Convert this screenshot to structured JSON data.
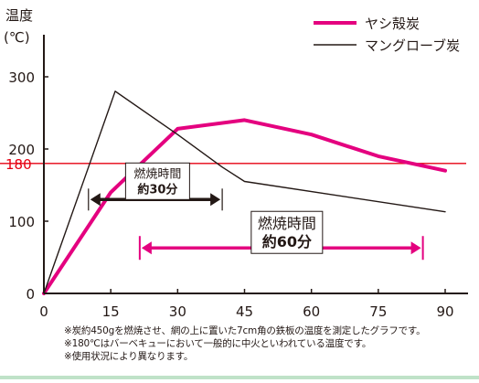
{
  "chart_data": {
    "type": "line",
    "ylabel_line1": "温度",
    "ylabel_line2": "(℃)",
    "xlim": [
      0,
      90
    ],
    "ylim": [
      0,
      300
    ],
    "x_ticks": [
      "0",
      "15",
      "30",
      "45",
      "60",
      "75",
      "90"
    ],
    "y_ticks": [
      {
        "value": 0,
        "label": "0"
      },
      {
        "value": 100,
        "label": "100"
      },
      {
        "value": 200,
        "label": "200"
      },
      {
        "value": 300,
        "label": "300"
      }
    ],
    "reference_line": {
      "value": 180,
      "label": "180",
      "color": "#e60012"
    },
    "legend_placement": "top-right",
    "series": [
      {
        "name": "ヤシ殻炭",
        "color": "#e4007f",
        "x": [
          0,
          15,
          30,
          45,
          60,
          75,
          90
        ],
        "y": [
          0,
          140,
          228,
          240,
          220,
          190,
          170
        ]
      },
      {
        "name": "マングローブ炭",
        "color": "#231815",
        "x": [
          0,
          10,
          16,
          30,
          40,
          45,
          90
        ],
        "y": [
          0,
          175,
          280,
          220,
          175,
          155,
          113
        ]
      }
    ],
    "annotations": [
      {
        "line1": "燃焼時間",
        "line2": "約30分",
        "x_start": 10,
        "x_end": 40,
        "y": 130,
        "color": "#231815",
        "arrow_color": "#231815"
      },
      {
        "line1": "燃焼時間",
        "line2": "約60分",
        "x_start": 21.5,
        "x_end": 85,
        "y": 63,
        "color": "#231815",
        "arrow_color": "#e4007f"
      }
    ]
  },
  "notes": [
    "※炭約450gを燃焼させ、網の上に置いた7cm角の鉄板の温度を測定したグラフです。",
    "※180℃はバーベキューにおいて一般的に中火といわれている温度です。",
    "※使用状況により異なります。"
  ],
  "colors": {
    "axis": "#231815",
    "pink": "#e4007f",
    "red_line": "#e60012",
    "footer_bar": "#bfe2c8"
  }
}
